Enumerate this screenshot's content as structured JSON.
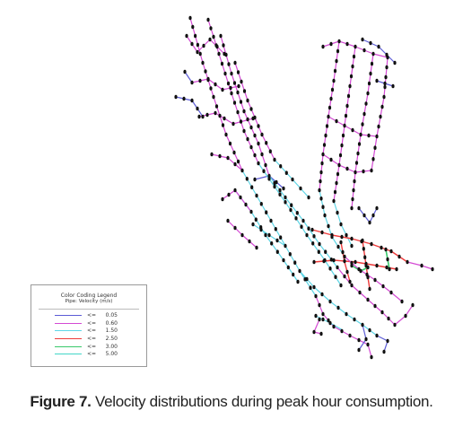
{
  "legend": {
    "title": "Color Coding Legend",
    "subtitle": "Pipe: Velocity (m/s)",
    "items": [
      {
        "op": "<=",
        "value": "0.05",
        "color": "#5c5cd6"
      },
      {
        "op": "<=",
        "value": "0.60",
        "color": "#d44ad4"
      },
      {
        "op": "<=",
        "value": "1.50",
        "color": "#5fd6e6"
      },
      {
        "op": "<=",
        "value": "2.50",
        "color": "#ee3b3b"
      },
      {
        "op": "<=",
        "value": "3.00",
        "color": "#39c96a"
      },
      {
        "op": "<=",
        "value": "5.00",
        "color": "#42d6c7"
      }
    ]
  },
  "caption": {
    "label": "Figure 7.",
    "text": " Velocity distributions during peak hour consumption."
  },
  "network_colors": {
    "low": "#5c5cd6",
    "mid": "#d44ad4",
    "high": "#5fd6e6",
    "critical": "#ee3b3b",
    "peak": "#39c96a",
    "node": "#111111"
  }
}
